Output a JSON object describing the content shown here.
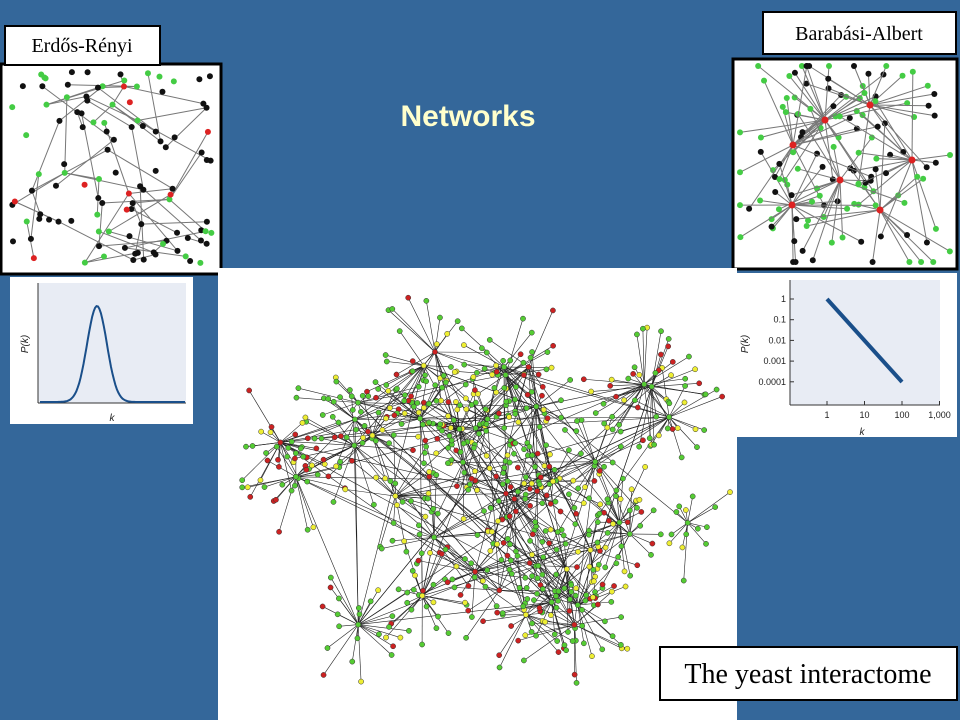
{
  "title": "Networks",
  "er": {
    "label": "Erdős-Rényi",
    "plot": {
      "y_axis_label": "P(k)",
      "x_axis_label": "k"
    }
  },
  "ba": {
    "label": "Barabási-Albert",
    "plot": {
      "y_axis_label": "P(k)",
      "x_axis_label": "k",
      "y_tick_labels": [
        "1",
        "0.1",
        "0.01",
        "0.001",
        "0.0001"
      ],
      "x_tick_labels": [
        "1",
        "10",
        "100",
        "1,000"
      ]
    }
  },
  "yeast": {
    "label": "The yeast interactome"
  }
}
